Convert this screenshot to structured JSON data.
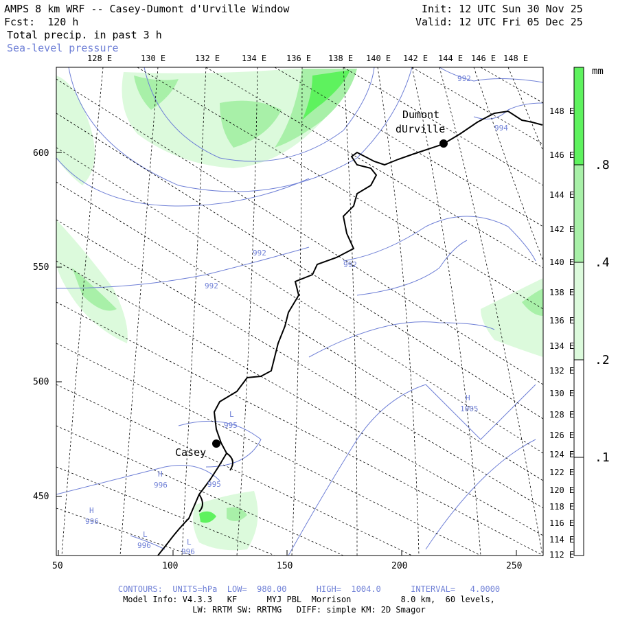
{
  "header": {
    "title": "AMPS 8 km WRF -- Casey-Dumont d'Urville Window",
    "forecast": "Fcst:  120 h",
    "field": "Total precip. in past 3 h",
    "contour_field": "Sea-level pressure",
    "init": "Init: 12 UTC Sun 30 Nov 25",
    "valid": "Valid: 12 UTC Fri 05 Dec 25"
  },
  "top_lon_labels": [
    "128 E",
    "130 E",
    "132 E",
    "134 E",
    "136 E",
    "138 E",
    "140 E",
    "142 E",
    "144 E",
    "146 E",
    "148 E"
  ],
  "right_lon_labels": [
    "148 E",
    "146 E",
    "144 E",
    "142 E",
    "140 E",
    "138 E",
    "136 E",
    "134 E",
    "132 E",
    "130 E",
    "128 E",
    "126 E",
    "124 E",
    "122 E",
    "120 E",
    "118 E",
    "116 E",
    "114 E",
    "112 E"
  ],
  "left_axis": [
    "600",
    "550",
    "500",
    "450"
  ],
  "bottom_axis": [
    "50",
    "100",
    "150",
    "200",
    "250"
  ],
  "stations": [
    {
      "name_line1": "Dumont",
      "name_line2": "dUrville"
    },
    {
      "name_line1": "Casey",
      "name_line2": ""
    }
  ],
  "pressure_labels": [
    "992",
    "994",
    "992",
    "992",
    "992",
    "L",
    "995",
    "H",
    "996",
    "995",
    "H",
    "996",
    "L",
    "996",
    "L",
    "996",
    "H",
    "1005"
  ],
  "colorbar": {
    "unit": "mm",
    "levels": [
      ".8",
      ".4",
      ".2",
      ".1"
    ],
    "colors": {
      "dark": "#5ef25e",
      "mid": "#a8f0a8",
      "light": "#dcfadc",
      "white": "#ffffff"
    }
  },
  "colors": {
    "contour": "#6e7fd6",
    "coast": "#000000",
    "grid": "#000000"
  },
  "footer": {
    "contours": "CONTOURS:  UNITS=hPa  LOW=  980.00      HIGH=  1004.0      INTERVAL=   4.0000",
    "model_info": "Model Info: V4.3.3   KF      MYJ PBL  Morrison          8.0 km,  60 levels,",
    "physics": "LW: RRTM SW: RRTMG   DIFF: simple KM: 2D Smagor"
  }
}
